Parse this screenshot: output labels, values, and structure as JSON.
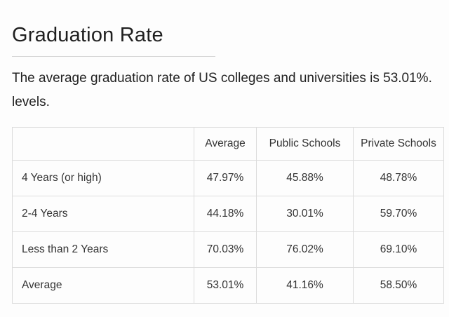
{
  "article": {
    "title": "Graduation Rate",
    "intro_line1": "The average graduation rate of US colleges and universities is 53.01%.",
    "intro_line2": "levels."
  },
  "table": {
    "headers": [
      "",
      "Average",
      "Public Schools",
      "Private Schools"
    ],
    "rows": [
      [
        "4 Years (or high)",
        "47.97%",
        "45.88%",
        "48.78%"
      ],
      [
        "2-4 Years",
        "44.18%",
        "30.01%",
        "59.70%"
      ],
      [
        "Less than 2 Years",
        "70.03%",
        "76.02%",
        "69.10%"
      ],
      [
        "Average",
        "53.01%",
        "41.16%",
        "58.50%"
      ]
    ]
  }
}
